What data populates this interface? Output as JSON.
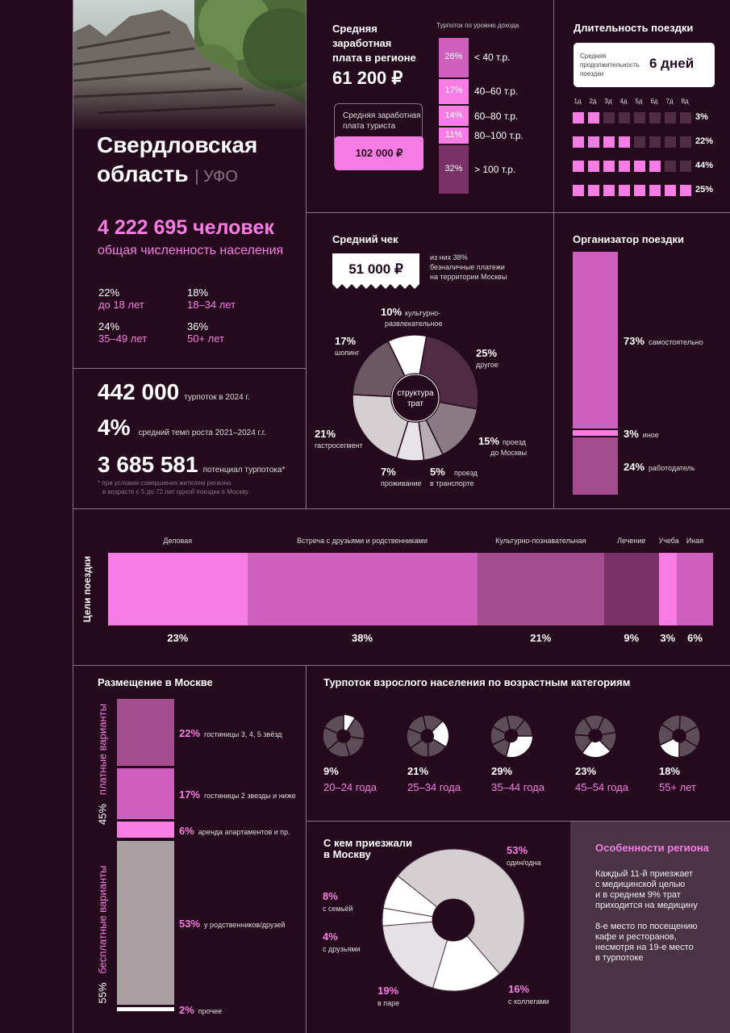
{
  "colors": {
    "bg": "#240a1c",
    "pink": "#f77ce3",
    "magenta": "#cf5fbc",
    "mauve": "#a34d8e",
    "plum": "#7a3168",
    "grey": "#a9a0a4",
    "light": "#d5cfd2",
    "dark": "#5c4d57"
  },
  "region": {
    "name_line1": "Свердловская",
    "name_line2": "область",
    "district": "| УФО",
    "population": "4 222 695 человек",
    "population_label": "общая численность населения",
    "age_groups": [
      {
        "pct": "22%",
        "label": "до 18 лет"
      },
      {
        "pct": "18%",
        "label": "18–34 лет"
      },
      {
        "pct": "24%",
        "label": "35–49 лет"
      },
      {
        "pct": "36%",
        "label": "50+ лет"
      }
    ]
  },
  "flow": {
    "value": "442 000",
    "label": "турпоток в 2024 г.",
    "growth": "4%",
    "growth_label": "средний темп роста 2021–2024 г.г.",
    "potential": "3 685 581",
    "potential_label": "потенциал турпотока*",
    "footnote1": "* при условии совершения жителем региона",
    "footnote2": "в возрасте с 5 до 72 лет одной поездки в Москву"
  },
  "salary": {
    "title1": "Средняя",
    "title2": "заработная",
    "title3": "плата в регионе",
    "value": "61 200 ₽",
    "tourist_label1": "Средняя заработная",
    "tourist_label2": "плата туриста",
    "tourist_value": "102 000 ₽"
  },
  "income": {
    "title": "Турпоток по уровню дохода",
    "bands": [
      {
        "pct": "26%",
        "label": "< 40 т.р.",
        "value": 26,
        "color": "#cf5fbc"
      },
      {
        "pct": "17%",
        "label": "40–60 т.р.",
        "value": 17,
        "color": "#f77ce3"
      },
      {
        "pct": "14%",
        "label": "60–80 т.р.",
        "value": 14,
        "color": "#f77ce3"
      },
      {
        "pct": "11%",
        "label": "80–100 т.р.",
        "value": 11,
        "color": "#f77ce3"
      },
      {
        "pct": "32%",
        "label": "> 100 т.р.",
        "value": 32,
        "color": "#7a3168"
      }
    ]
  },
  "duration": {
    "title": "Длительность поездки",
    "avg_label1": "Средняя",
    "avg_label2": "продолжительность",
    "avg_label3": "поездки",
    "avg_value": "6 дней",
    "days": [
      "1д",
      "2д",
      "3д",
      "4д",
      "5д",
      "6д",
      "7д",
      "8д"
    ],
    "rows": [
      {
        "pct": "3%",
        "filled": 2
      },
      {
        "pct": "22%",
        "filled": 4
      },
      {
        "pct": "44%",
        "filled": 6
      },
      {
        "pct": "25%",
        "filled": 8
      }
    ]
  },
  "check": {
    "title": "Средний чек",
    "value": "51 000 ₽",
    "note1": "из них 38%",
    "note2": "безналичные платежи",
    "note3": "на территории Москвы",
    "center1": "структура",
    "center2": "трат",
    "slices": [
      {
        "pct": "10%",
        "label1": "культурно-",
        "label2": "развлекательное",
        "value": 10,
        "color": "#ffffff"
      },
      {
        "pct": "25%",
        "label1": "другое",
        "label2": "",
        "value": 25,
        "color": "#4f2c43"
      },
      {
        "pct": "15%",
        "label1": "проезд",
        "label2": "до Москвы",
        "value": 15,
        "color": "#8a7a84"
      },
      {
        "pct": "5%",
        "label1": "проезд",
        "label2": "в транспорте",
        "value": 5,
        "color": "#b7aeb3"
      },
      {
        "pct": "7%",
        "label1": "проживание",
        "label2": "",
        "value": 7,
        "color": "#e8e3e6"
      },
      {
        "pct": "21%",
        "label1": "гастросегмент",
        "label2": "",
        "value": 21,
        "color": "#d5cfd2"
      },
      {
        "pct": "17%",
        "label1": "шопинг",
        "label2": "",
        "value": 17,
        "color": "#6b5863"
      }
    ]
  },
  "organizer": {
    "title": "Организатор  поездки",
    "parts": [
      {
        "pct": "73%",
        "label": "самостоятельно",
        "value": 73,
        "color": "#cf5fbc"
      },
      {
        "pct": "3%",
        "label": "иное",
        "value": 3,
        "color": "#f77ce3"
      },
      {
        "pct": "24%",
        "label": "работодатель",
        "value": 24,
        "color": "#a34d8e"
      }
    ]
  },
  "purposes": {
    "axis": "Цели поездки",
    "items": [
      {
        "label": "Деловая",
        "pct": "23%",
        "value": 23,
        "color": "#f77ce3"
      },
      {
        "label": "Встреча с друзьями и родственниками",
        "pct": "38%",
        "value": 38,
        "color": "#cf5fbc"
      },
      {
        "label": "Культурно-познавательная",
        "pct": "21%",
        "value": 21,
        "color": "#a34d8e"
      },
      {
        "label": "Лечение",
        "pct": "9%",
        "value": 9,
        "color": "#7a3168"
      },
      {
        "label": "Учеба",
        "pct": "3%",
        "value": 3,
        "color": "#f77ce3"
      },
      {
        "label": "Иная",
        "pct": "6%",
        "value": 6,
        "color": "#cf5fbc"
      }
    ]
  },
  "accommodation": {
    "title": "Размещение в Москве",
    "paid_pct": "45%",
    "paid_label": "платные варианты",
    "free_pct": "55%",
    "free_label": "бесплатные варианты",
    "parts": [
      {
        "pct": "22%",
        "label": "гостиницы 3, 4, 5 звёзд",
        "value": 22,
        "color": "#a34d8e"
      },
      {
        "pct": "17%",
        "label": "гостиницы 2 звезды и ниже",
        "value": 17,
        "color": "#cf5fbc"
      },
      {
        "pct": "6%",
        "label": "аренда апартаментов и пр.",
        "value": 6,
        "color": "#f77ce3"
      },
      {
        "pct": "53%",
        "label": "у родственников/друзей",
        "value": 53,
        "color": "#a9a0a4"
      },
      {
        "pct": "2%",
        "label": "прочее",
        "value": 2,
        "color": "#ffffff"
      }
    ]
  },
  "age_flow": {
    "title": "Турпоток взрослого населения по возрастным категориям",
    "items": [
      {
        "pct": "9%",
        "label": "20–24 года",
        "value": 9
      },
      {
        "pct": "21%",
        "label": "25–34 года",
        "value": 21
      },
      {
        "pct": "29%",
        "label": "35–44 года",
        "value": 29
      },
      {
        "pct": "23%",
        "label": "45–54 года",
        "value": 23
      },
      {
        "pct": "18%",
        "label": "55+ лет",
        "value": 18
      }
    ]
  },
  "company": {
    "title1": "С кем приезжали",
    "title2": "в Москву",
    "slices": [
      {
        "pct": "53%",
        "label": "один/одна",
        "value": 53,
        "color": "#d5cfd2"
      },
      {
        "pct": "16%",
        "label": "с коллегами",
        "value": 16,
        "color": "#ffffff"
      },
      {
        "pct": "19%",
        "label": "в паре",
        "value": 19,
        "color": "#e6e1e4"
      },
      {
        "pct": "4%",
        "label": "с друзьями",
        "value": 4,
        "color": "#ffffff"
      },
      {
        "pct": "8%",
        "label": "с семьёй",
        "value": 8,
        "color": "#ffffff"
      }
    ]
  },
  "features": {
    "title": "Особенности региона",
    "p1_1": "Каждый 11-й приезжает",
    "p1_2": "с медицинской целью",
    "p1_3": "и в среднем 9% трат",
    "p1_4": "приходится на медицину",
    "p2_1": "8-е место по посещению",
    "p2_2": "кафе и ресторанов,",
    "p2_3": "несмотря на 19-е место",
    "p2_4": "в турпотоке"
  },
  "chart_data": [
    {
      "type": "bar",
      "title": "Турпоток по уровню дохода",
      "categories": [
        "< 40 т.р.",
        "40–60 т.р.",
        "60–80 т.р.",
        "80–100 т.р.",
        "> 100 т.р."
      ],
      "values": [
        26,
        17,
        14,
        11,
        32
      ]
    },
    {
      "type": "pie",
      "title": "Средний чек",
      "categories": [
        "культурно-развлекательное",
        "другое",
        "проезд до Москвы",
        "проезд в транспорте",
        "проживание",
        "гастросегмент",
        "шопинг"
      ],
      "values": [
        10,
        25,
        15,
        5,
        7,
        21,
        17
      ]
    },
    {
      "type": "bar",
      "title": "Организатор  поездки",
      "categories": [
        "самостоятельно",
        "иное",
        "работодатель"
      ],
      "values": [
        73,
        3,
        24
      ]
    },
    {
      "type": "bar",
      "title": "Длительность поездки",
      "categories": [
        "2д",
        "4д",
        "6д",
        "8д"
      ],
      "values": [
        3,
        22,
        44,
        25
      ]
    },
    {
      "type": "bar",
      "title": "Цели поездки",
      "categories": [
        "Деловая",
        "Встреча с друзьями и родственниками",
        "Культурно-познавательная",
        "Лечение",
        "Учеба",
        "Иная"
      ],
      "values": [
        23,
        38,
        21,
        9,
        3,
        6
      ]
    },
    {
      "type": "bar",
      "title": "Размещение в Москве",
      "categories": [
        "гостиницы 3, 4, 5 звёзд",
        "гостиницы 2 звезды и ниже",
        "аренда апартаментов и пр.",
        "у родственников/друзей",
        "прочее"
      ],
      "values": [
        22,
        17,
        6,
        53,
        2
      ]
    },
    {
      "type": "pie",
      "title": "Турпоток взрослого населения по возрастным категориям",
      "categories": [
        "20–24 года",
        "25–34 года",
        "35–44 года",
        "45–54 года",
        "55+ лет"
      ],
      "values": [
        9,
        21,
        29,
        23,
        18
      ]
    },
    {
      "type": "pie",
      "title": "С кем приезжали в Москву",
      "categories": [
        "один/одна",
        "с коллегами",
        "в паре",
        "с друзьями",
        "с семьёй"
      ],
      "values": [
        53,
        16,
        19,
        4,
        8
      ]
    }
  ]
}
